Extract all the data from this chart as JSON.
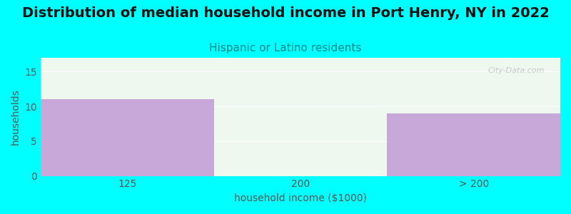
{
  "title": "Distribution of median household income in Port Henry, NY in 2022",
  "subtitle": "Hispanic or Latino residents",
  "xlabel": "household income ($1000)",
  "ylabel": "households",
  "background_color": "#00FFFF",
  "plot_bg_color": "#eef8ee",
  "bar_color": "#c8a8d8",
  "categories": [
    "125",
    "200",
    "> 200"
  ],
  "values": [
    11,
    0,
    9
  ],
  "ylim": [
    0,
    17
  ],
  "yticks": [
    0,
    5,
    10,
    15
  ],
  "title_fontsize": 14,
  "subtitle_fontsize": 11,
  "subtitle_color": "#008888",
  "axis_label_color": "#555555",
  "tick_label_color": "#555555",
  "watermark": "City-Data.com"
}
